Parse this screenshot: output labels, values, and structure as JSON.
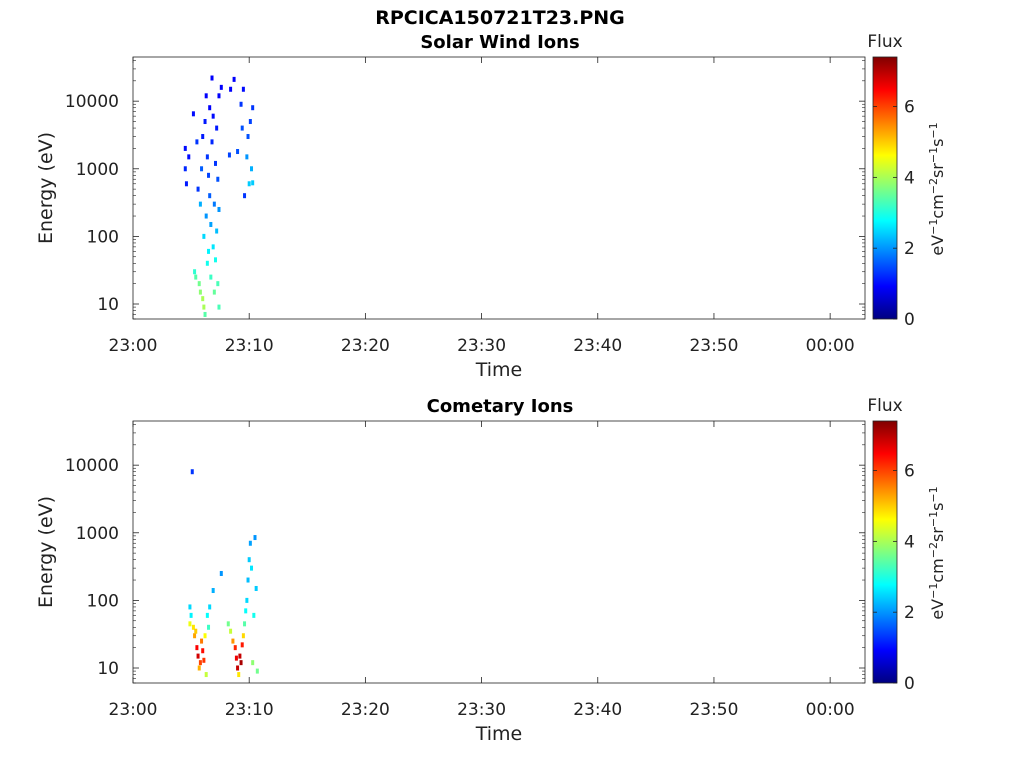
{
  "figure_title": "RPCICA150721T23.PNG",
  "colorscale": [
    "#000080",
    "#0000ff",
    "#0080ff",
    "#00ffff",
    "#80ff80",
    "#ffff00",
    "#ff8000",
    "#ff0000",
    "#800000"
  ],
  "chart_data": [
    {
      "type": "heatmap",
      "title": "Solar Wind Ions",
      "xlabel": "Time",
      "ylabel": "Energy (eV)",
      "x_ticks": [
        "23:00",
        "23:10",
        "23:20",
        "23:30",
        "23:40",
        "23:50",
        "00:00"
      ],
      "y_ticks": [
        "10",
        "100",
        "1000",
        "10000"
      ],
      "y_scale": "log",
      "ylim": [
        6,
        45000
      ],
      "xlim_min": [
        0,
        63
      ],
      "colorbar": {
        "label": "Flux",
        "units": "eV-1cm-2sr-1s-1",
        "ticks": [
          "0",
          "2",
          "4",
          "6"
        ],
        "range": [
          0,
          7.4
        ]
      },
      "cells": [
        {
          "t": 4.5,
          "e": 1000,
          "v": 1.2
        },
        {
          "t": 4.5,
          "e": 2000,
          "v": 1.0
        },
        {
          "t": 4.6,
          "e": 600,
          "v": 1.1
        },
        {
          "t": 4.8,
          "e": 1500,
          "v": 1.0
        },
        {
          "t": 5.2,
          "e": 6500,
          "v": 1.0
        },
        {
          "t": 5.3,
          "e": 30,
          "v": 3.1
        },
        {
          "t": 5.4,
          "e": 25,
          "v": 3.4
        },
        {
          "t": 5.5,
          "e": 2500,
          "v": 1.3
        },
        {
          "t": 5.6,
          "e": 500,
          "v": 1.3
        },
        {
          "t": 5.7,
          "e": 20,
          "v": 3.6
        },
        {
          "t": 5.8,
          "e": 15,
          "v": 3.8
        },
        {
          "t": 5.8,
          "e": 300,
          "v": 2.2
        },
        {
          "t": 5.9,
          "e": 1000,
          "v": 1.6
        },
        {
          "t": 6.0,
          "e": 12,
          "v": 4.0
        },
        {
          "t": 6.0,
          "e": 3000,
          "v": 1.1
        },
        {
          "t": 6.1,
          "e": 9,
          "v": 4.0
        },
        {
          "t": 6.1,
          "e": 100,
          "v": 2.5
        },
        {
          "t": 6.2,
          "e": 7,
          "v": 3.4
        },
        {
          "t": 6.2,
          "e": 5000,
          "v": 1.1
        },
        {
          "t": 6.3,
          "e": 12000,
          "v": 0.9
        },
        {
          "t": 6.3,
          "e": 200,
          "v": 2.0
        },
        {
          "t": 6.4,
          "e": 40,
          "v": 2.9
        },
        {
          "t": 6.4,
          "e": 1500,
          "v": 1.3
        },
        {
          "t": 6.5,
          "e": 800,
          "v": 1.4
        },
        {
          "t": 6.5,
          "e": 60,
          "v": 2.7
        },
        {
          "t": 6.6,
          "e": 8000,
          "v": 0.9
        },
        {
          "t": 6.6,
          "e": 400,
          "v": 1.6
        },
        {
          "t": 6.7,
          "e": 150,
          "v": 2.1
        },
        {
          "t": 6.7,
          "e": 25,
          "v": 3.2
        },
        {
          "t": 6.8,
          "e": 22000,
          "v": 0.9
        },
        {
          "t": 6.8,
          "e": 2500,
          "v": 1.2
        },
        {
          "t": 6.9,
          "e": 70,
          "v": 2.6
        },
        {
          "t": 6.9,
          "e": 6000,
          "v": 1.0
        },
        {
          "t": 7.0,
          "e": 300,
          "v": 1.8
        },
        {
          "t": 7.0,
          "e": 15,
          "v": 3.5
        },
        {
          "t": 7.1,
          "e": 1200,
          "v": 1.3
        },
        {
          "t": 7.1,
          "e": 45,
          "v": 2.9
        },
        {
          "t": 7.2,
          "e": 4000,
          "v": 1.1
        },
        {
          "t": 7.2,
          "e": 120,
          "v": 2.3
        },
        {
          "t": 7.3,
          "e": 20,
          "v": 3.3
        },
        {
          "t": 7.3,
          "e": 700,
          "v": 1.5
        },
        {
          "t": 7.4,
          "e": 9,
          "v": 3.3
        },
        {
          "t": 7.4,
          "e": 250,
          "v": 2.0
        },
        {
          "t": 7.4,
          "e": 12000,
          "v": 0.9
        },
        {
          "t": 7.6,
          "e": 16000,
          "v": 0.9
        },
        {
          "t": 8.3,
          "e": 1600,
          "v": 1.4
        },
        {
          "t": 8.4,
          "e": 15000,
          "v": 0.9
        },
        {
          "t": 8.7,
          "e": 21000,
          "v": 0.9
        },
        {
          "t": 9.0,
          "e": 1800,
          "v": 1.5
        },
        {
          "t": 9.3,
          "e": 9000,
          "v": 1.3
        },
        {
          "t": 9.4,
          "e": 4000,
          "v": 1.5
        },
        {
          "t": 9.5,
          "e": 15000,
          "v": 1.0
        },
        {
          "t": 9.6,
          "e": 400,
          "v": 1.3
        },
        {
          "t": 9.8,
          "e": 1500,
          "v": 2.0
        },
        {
          "t": 9.9,
          "e": 3000,
          "v": 1.5
        },
        {
          "t": 10.0,
          "e": 600,
          "v": 2.4
        },
        {
          "t": 10.1,
          "e": 5000,
          "v": 1.4
        },
        {
          "t": 10.2,
          "e": 1000,
          "v": 2.2
        },
        {
          "t": 10.3,
          "e": 8000,
          "v": 1.3
        },
        {
          "t": 10.3,
          "e": 620,
          "v": 2.4
        }
      ]
    },
    {
      "type": "heatmap",
      "title": "Cometary Ions",
      "xlabel": "Time",
      "ylabel": "Energy (eV)",
      "x_ticks": [
        "23:00",
        "23:10",
        "23:20",
        "23:30",
        "23:40",
        "23:50",
        "00:00"
      ],
      "y_ticks": [
        "10",
        "100",
        "1000",
        "10000"
      ],
      "y_scale": "log",
      "ylim": [
        6,
        45000
      ],
      "xlim_min": [
        0,
        63
      ],
      "colorbar": {
        "label": "Flux",
        "units": "eV-1cm-2sr-1s-1",
        "ticks": [
          "0",
          "2",
          "4",
          "6"
        ],
        "range": [
          0,
          7.4
        ]
      },
      "cells": [
        {
          "t": 5.1,
          "e": 8000,
          "v": 1.3
        },
        {
          "t": 4.9,
          "e": 80,
          "v": 2.5
        },
        {
          "t": 4.9,
          "e": 45,
          "v": 4.5
        },
        {
          "t": 5.0,
          "e": 60,
          "v": 2.7
        },
        {
          "t": 5.2,
          "e": 40,
          "v": 4.8
        },
        {
          "t": 5.3,
          "e": 30,
          "v": 5.3
        },
        {
          "t": 5.4,
          "e": 35,
          "v": 5.0
        },
        {
          "t": 5.5,
          "e": 20,
          "v": 6.5
        },
        {
          "t": 5.6,
          "e": 15,
          "v": 6.8
        },
        {
          "t": 5.7,
          "e": 10,
          "v": 5.2
        },
        {
          "t": 5.8,
          "e": 12,
          "v": 6.0
        },
        {
          "t": 5.9,
          "e": 25,
          "v": 5.6
        },
        {
          "t": 6.0,
          "e": 18,
          "v": 6.4
        },
        {
          "t": 6.1,
          "e": 13,
          "v": 6.1
        },
        {
          "t": 6.2,
          "e": 30,
          "v": 4.6
        },
        {
          "t": 6.3,
          "e": 8,
          "v": 4.2
        },
        {
          "t": 6.4,
          "e": 60,
          "v": 2.8
        },
        {
          "t": 6.5,
          "e": 40,
          "v": 3.2
        },
        {
          "t": 6.6,
          "e": 80,
          "v": 2.5
        },
        {
          "t": 6.9,
          "e": 140,
          "v": 2.2
        },
        {
          "t": 7.6,
          "e": 250,
          "v": 2.0
        },
        {
          "t": 8.2,
          "e": 45,
          "v": 3.6
        },
        {
          "t": 8.4,
          "e": 35,
          "v": 4.2
        },
        {
          "t": 8.6,
          "e": 25,
          "v": 5.4
        },
        {
          "t": 8.8,
          "e": 20,
          "v": 6.2
        },
        {
          "t": 8.9,
          "e": 14,
          "v": 6.6
        },
        {
          "t": 9.0,
          "e": 10,
          "v": 6.9
        },
        {
          "t": 9.1,
          "e": 8,
          "v": 4.8
        },
        {
          "t": 9.2,
          "e": 15,
          "v": 6.9
        },
        {
          "t": 9.3,
          "e": 12,
          "v": 7.1
        },
        {
          "t": 9.4,
          "e": 22,
          "v": 6.3
        },
        {
          "t": 9.5,
          "e": 30,
          "v": 4.9
        },
        {
          "t": 9.6,
          "e": 45,
          "v": 3.4
        },
        {
          "t": 9.7,
          "e": 70,
          "v": 2.8
        },
        {
          "t": 9.8,
          "e": 100,
          "v": 2.5
        },
        {
          "t": 9.9,
          "e": 200,
          "v": 2.3
        },
        {
          "t": 10.0,
          "e": 400,
          "v": 2.4
        },
        {
          "t": 10.1,
          "e": 700,
          "v": 2.1
        },
        {
          "t": 10.2,
          "e": 300,
          "v": 2.6
        },
        {
          "t": 10.3,
          "e": 12,
          "v": 3.8
        },
        {
          "t": 10.4,
          "e": 60,
          "v": 2.9
        },
        {
          "t": 10.5,
          "e": 850,
          "v": 2.0
        },
        {
          "t": 10.6,
          "e": 150,
          "v": 2.4
        },
        {
          "t": 10.7,
          "e": 9,
          "v": 3.6
        }
      ]
    }
  ]
}
